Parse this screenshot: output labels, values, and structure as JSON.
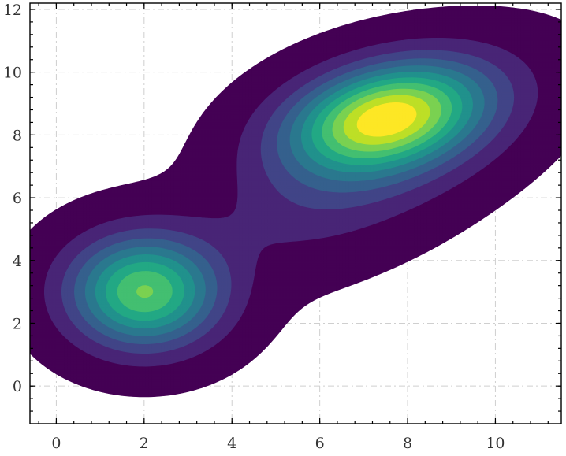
{
  "chart_data": {
    "type": "heatmap",
    "subtype": "filled-contour (kernel density estimate)",
    "colormap": "viridis",
    "title": "",
    "xlabel": "",
    "ylabel": "",
    "xlim": [
      -0.6,
      11.5
    ],
    "ylim": [
      -1.2,
      12.2
    ],
    "xticks": [
      0,
      2,
      4,
      6,
      8,
      10
    ],
    "yticks": [
      0,
      2,
      4,
      6,
      8,
      10,
      12
    ],
    "xtick_labels": [
      "0",
      "2",
      "4",
      "6",
      "8",
      "10"
    ],
    "ytick_labels": [
      "0",
      "2",
      "4",
      "6",
      "8",
      "10",
      "12"
    ],
    "grid": true,
    "levels": 11,
    "outer_level_fraction": 0.0152,
    "components": [
      {
        "name": "",
        "mean_x": 2.0,
        "mean_y": 3.0,
        "sigma_x": 1.15,
        "sigma_y": 1.2,
        "rho": 0.0,
        "weight": 0.32
      },
      {
        "name": "",
        "mean_x": 7.5,
        "mean_y": 8.6,
        "sigma_x": 1.5,
        "sigma_y": 1.15,
        "rho": 0.3,
        "weight": 0.44
      },
      {
        "name": "",
        "mean_x": 7.1,
        "mean_y": 7.1,
        "sigma_x": 2.2,
        "sigma_y": 2.0,
        "rho": 0.6,
        "weight": 0.24
      }
    ],
    "colors": [
      "#440154",
      "#482576",
      "#414487",
      "#35608d",
      "#2a788e",
      "#21918c",
      "#22a884",
      "#43bf71",
      "#7ad151",
      "#bddf26",
      "#fde725"
    ]
  }
}
